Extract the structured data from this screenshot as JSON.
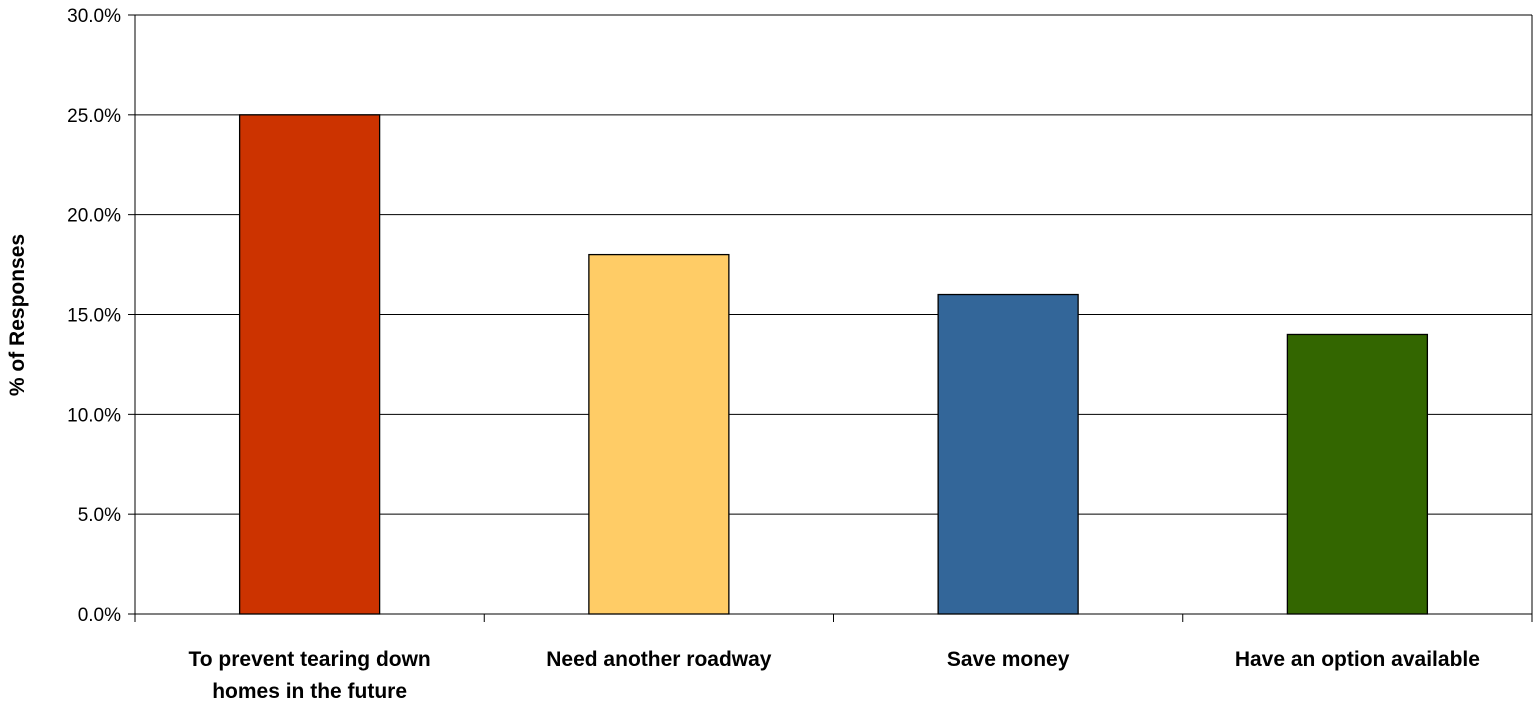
{
  "chart_data": {
    "type": "bar",
    "categories": [
      [
        "To prevent tearing down",
        "homes in the future"
      ],
      [
        "Need another roadway"
      ],
      [
        "Save money"
      ],
      [
        "Have an option available"
      ]
    ],
    "values": [
      25.0,
      18.0,
      16.0,
      14.0
    ],
    "bar_colors": [
      "#cc3300",
      "#ffcc66",
      "#336699",
      "#336600"
    ],
    "title": "",
    "xlabel": "",
    "ylabel": "% of Responses",
    "ylim": [
      0,
      30
    ],
    "yticks": [
      0,
      5,
      10,
      15,
      20,
      25,
      30
    ],
    "ytick_labels": [
      "0.0%",
      "5.0%",
      "10.0%",
      "15.0%",
      "20.0%",
      "25.0%",
      "30.0%"
    ],
    "grid": true,
    "legend": "none"
  }
}
